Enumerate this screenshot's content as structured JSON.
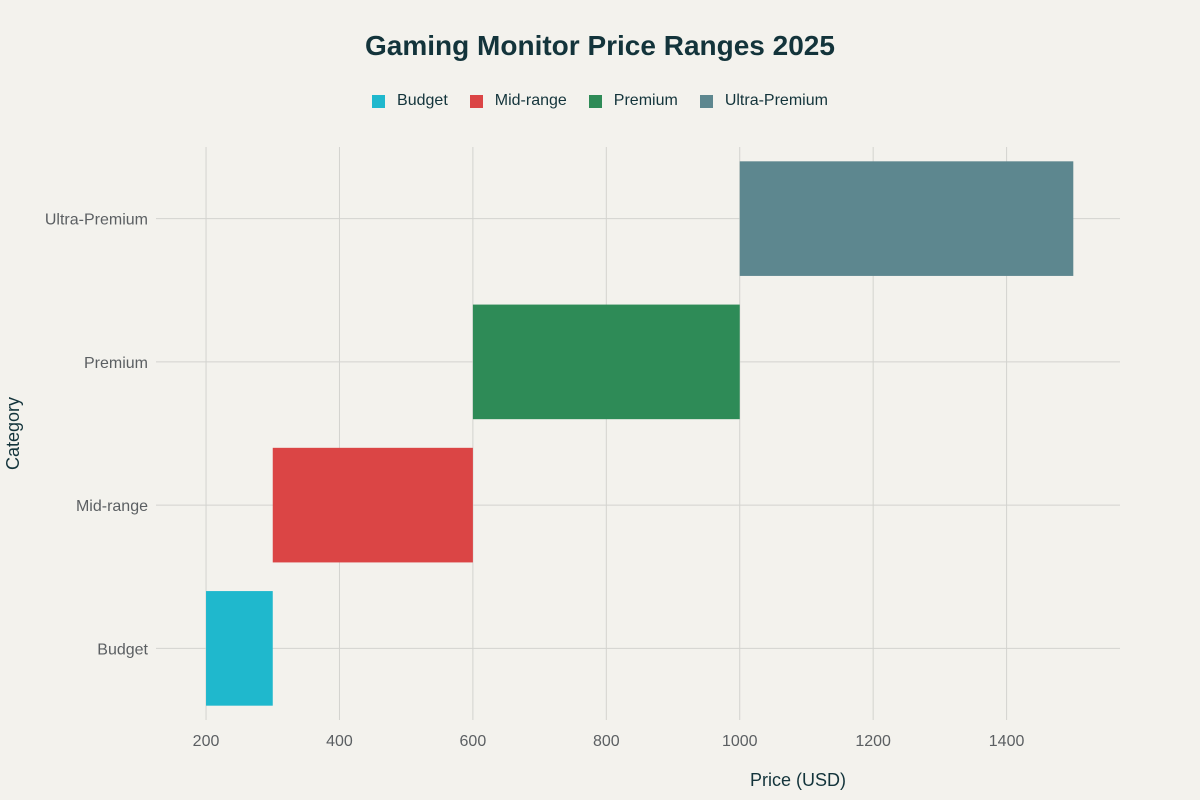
{
  "chart_data": {
    "type": "bar",
    "orientation": "horizontal-range",
    "title": "Gaming Monitor Price Ranges 2025",
    "xlabel": "Price (USD)",
    "ylabel": "Category",
    "xlim": [
      125,
      1570
    ],
    "x_ticks": [
      200,
      400,
      600,
      800,
      1000,
      1200,
      1400
    ],
    "x_tick_labels": [
      "200",
      "400",
      "600",
      "800",
      "1000",
      "1200",
      "1400"
    ],
    "categories": [
      "Budget",
      "Mid-range",
      "Premium",
      "Ultra-Premium"
    ],
    "series": [
      {
        "name": "Budget",
        "category": "Budget",
        "start": 200,
        "end": 300,
        "color": "#1fb8cd"
      },
      {
        "name": "Mid-range",
        "category": "Mid-range",
        "start": 300,
        "end": 600,
        "color": "#db4545"
      },
      {
        "name": "Premium",
        "category": "Premium",
        "start": 600,
        "end": 1000,
        "color": "#2e8b57"
      },
      {
        "name": "Ultra-Premium",
        "category": "Ultra-Premium",
        "start": 1000,
        "end": 1500,
        "color": "#5d878f"
      }
    ],
    "grid": true,
    "legend_position": "top-center"
  }
}
